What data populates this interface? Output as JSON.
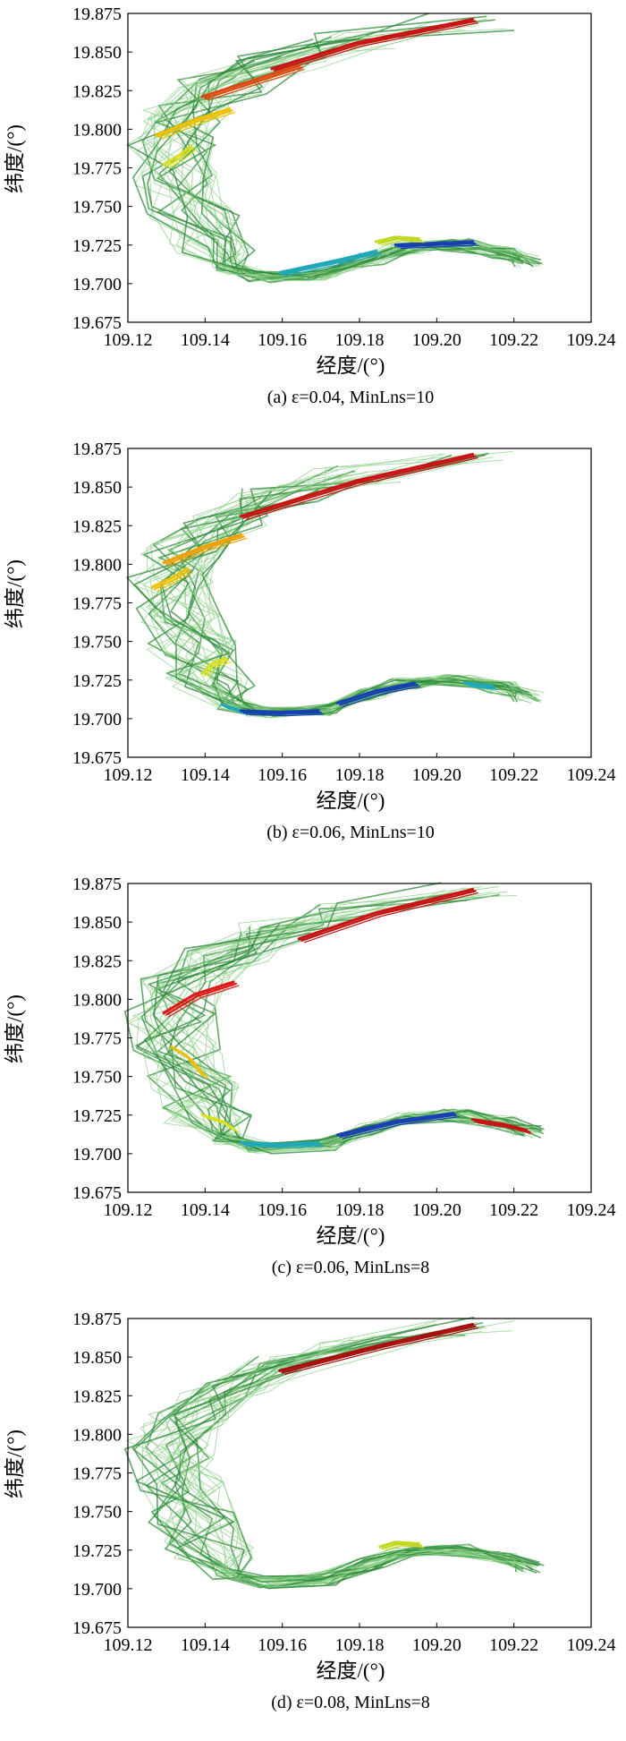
{
  "chart_data": [
    {
      "type": "line",
      "caption": "(a) ε=0.04, MinLns=10",
      "xlabel": "经度/(°)",
      "ylabel": "纬度/(°)",
      "xlim": [
        109.12,
        109.24
      ],
      "ylim": [
        19.675,
        19.875
      ],
      "xticks": [
        "109.12",
        "109.14",
        "109.16",
        "109.18",
        "109.20",
        "109.22",
        "109.24"
      ],
      "yticks": [
        "19.875",
        "19.850",
        "19.825",
        "19.800",
        "19.775",
        "19.750",
        "19.725",
        "19.700",
        "19.675"
      ],
      "colors": {
        "thin": "#8fd18a",
        "base": "#2e8b3a"
      },
      "series": [
        {
          "color": "#c81414",
          "x": [
            109.158,
            109.18,
            109.21
          ],
          "y": [
            19.838,
            19.855,
            19.87
          ]
        },
        {
          "color": "#e04a10",
          "x": [
            109.14,
            109.155,
            109.165
          ],
          "y": [
            19.82,
            19.832,
            19.84
          ]
        },
        {
          "color": "#f0c000",
          "x": [
            109.128,
            109.138,
            109.147
          ],
          "y": [
            19.795,
            19.805,
            19.812
          ]
        },
        {
          "color": "#d9e020",
          "x": [
            109.13,
            109.134,
            109.137
          ],
          "y": [
            19.776,
            19.782,
            19.788
          ]
        },
        {
          "color": "#20a8b8",
          "x": [
            109.16,
            109.175,
            109.185
          ],
          "y": [
            19.706,
            19.714,
            19.72
          ]
        },
        {
          "color": "#1740b0",
          "x": [
            109.19,
            109.2,
            109.21
          ],
          "y": [
            19.724,
            19.725,
            19.726
          ]
        },
        {
          "color": "#c0d820",
          "x": [
            109.185,
            109.19,
            109.196
          ],
          "y": [
            19.726,
            19.729,
            19.728
          ]
        }
      ]
    },
    {
      "type": "line",
      "caption": "(b) ε=0.06, MinLns=10",
      "xlabel": "经度/(°)",
      "ylabel": "纬度/(°)",
      "xlim": [
        109.12,
        109.24
      ],
      "ylim": [
        19.675,
        19.875
      ],
      "xticks": [
        "109.12",
        "109.14",
        "109.16",
        "109.18",
        "109.20",
        "109.22",
        "109.24"
      ],
      "yticks": [
        "19.875",
        "19.850",
        "19.825",
        "19.800",
        "19.775",
        "19.750",
        "19.725",
        "19.700",
        "19.675"
      ],
      "colors": {
        "thin": "#8fd18a",
        "base": "#2e8b3a"
      },
      "series": [
        {
          "color": "#c81414",
          "x": [
            109.15,
            109.18,
            109.21
          ],
          "y": [
            19.83,
            19.853,
            19.87
          ]
        },
        {
          "color": "#f0a000",
          "x": [
            109.13,
            109.14,
            109.15
          ],
          "y": [
            19.8,
            19.81,
            19.818
          ]
        },
        {
          "color": "#f0c000",
          "x": [
            109.127,
            109.132,
            109.136
          ],
          "y": [
            19.784,
            19.79,
            19.796
          ]
        },
        {
          "color": "#d9e020",
          "x": [
            109.14,
            109.142,
            109.146
          ],
          "y": [
            19.728,
            19.734,
            19.738
          ]
        },
        {
          "color": "#20a8b8",
          "x": [
            109.145,
            109.15
          ],
          "y": [
            19.708,
            19.704
          ]
        },
        {
          "color": "#1740b0",
          "x": [
            109.15,
            109.16,
            109.17
          ],
          "y": [
            19.704,
            19.703,
            19.704
          ]
        },
        {
          "color": "#1740b0",
          "x": [
            109.175,
            109.185,
            109.195
          ],
          "y": [
            19.709,
            19.717,
            19.722
          ]
        },
        {
          "color": "#20a8b8",
          "x": [
            109.208,
            109.215
          ],
          "y": [
            19.722,
            19.72
          ]
        }
      ]
    },
    {
      "type": "line",
      "caption": "(c) ε=0.06, MinLns=8",
      "xlabel": "经度/(°)",
      "ylabel": "纬度/(°)",
      "xlim": [
        109.12,
        109.24
      ],
      "ylim": [
        19.675,
        19.875
      ],
      "xticks": [
        "109.12",
        "109.14",
        "109.16",
        "109.18",
        "109.20",
        "109.22",
        "109.24"
      ],
      "yticks": [
        "19.875",
        "19.850",
        "19.825",
        "19.800",
        "19.775",
        "19.750",
        "19.725",
        "19.700",
        "19.675"
      ],
      "colors": {
        "thin": "#8fd18a",
        "base": "#2e8b3a"
      },
      "series": [
        {
          "color": "#c81414",
          "x": [
            109.165,
            109.185,
            109.21
          ],
          "y": [
            19.838,
            19.855,
            19.87
          ]
        },
        {
          "color": "#e01818",
          "x": [
            109.13,
            109.138,
            109.148
          ],
          "y": [
            19.79,
            19.802,
            19.81
          ]
        },
        {
          "color": "#f0c000",
          "x": [
            109.132,
            109.136,
            109.14
          ],
          "y": [
            19.768,
            19.762,
            19.75
          ]
        },
        {
          "color": "#d9e020",
          "x": [
            109.14,
            109.145,
            109.148
          ],
          "y": [
            19.724,
            19.72,
            19.715
          ]
        },
        {
          "color": "#20a8b8",
          "x": [
            109.15,
            109.16,
            109.17
          ],
          "y": [
            19.706,
            19.705,
            19.706
          ]
        },
        {
          "color": "#1740b0",
          "x": [
            109.175,
            109.19,
            109.205
          ],
          "y": [
            19.711,
            19.72,
            19.725
          ]
        },
        {
          "color": "#c81414",
          "x": [
            109.21,
            109.218,
            109.224
          ],
          "y": [
            19.721,
            19.718,
            19.714
          ]
        }
      ]
    },
    {
      "type": "line",
      "caption": "(d) ε=0.08, MinLns=8",
      "xlabel": "经度/(°)",
      "ylabel": "纬度/(°)",
      "xlim": [
        109.12,
        109.24
      ],
      "ylim": [
        19.675,
        19.875
      ],
      "xticks": [
        "109.12",
        "109.14",
        "109.16",
        "109.18",
        "109.20",
        "109.22",
        "109.24"
      ],
      "yticks": [
        "19.875",
        "19.850",
        "19.825",
        "19.800",
        "19.775",
        "19.750",
        "19.725",
        "19.700",
        "19.675"
      ],
      "colors": {
        "thin": "#8fd18a",
        "base": "#2e8b3a"
      },
      "series": [
        {
          "color": "#a81010",
          "x": [
            109.16,
            109.185,
            109.21
          ],
          "y": [
            19.84,
            19.856,
            19.87
          ]
        },
        {
          "color": "#c0d820",
          "x": [
            109.186,
            109.19,
            109.196
          ],
          "y": [
            19.726,
            19.729,
            19.728
          ]
        }
      ]
    }
  ]
}
